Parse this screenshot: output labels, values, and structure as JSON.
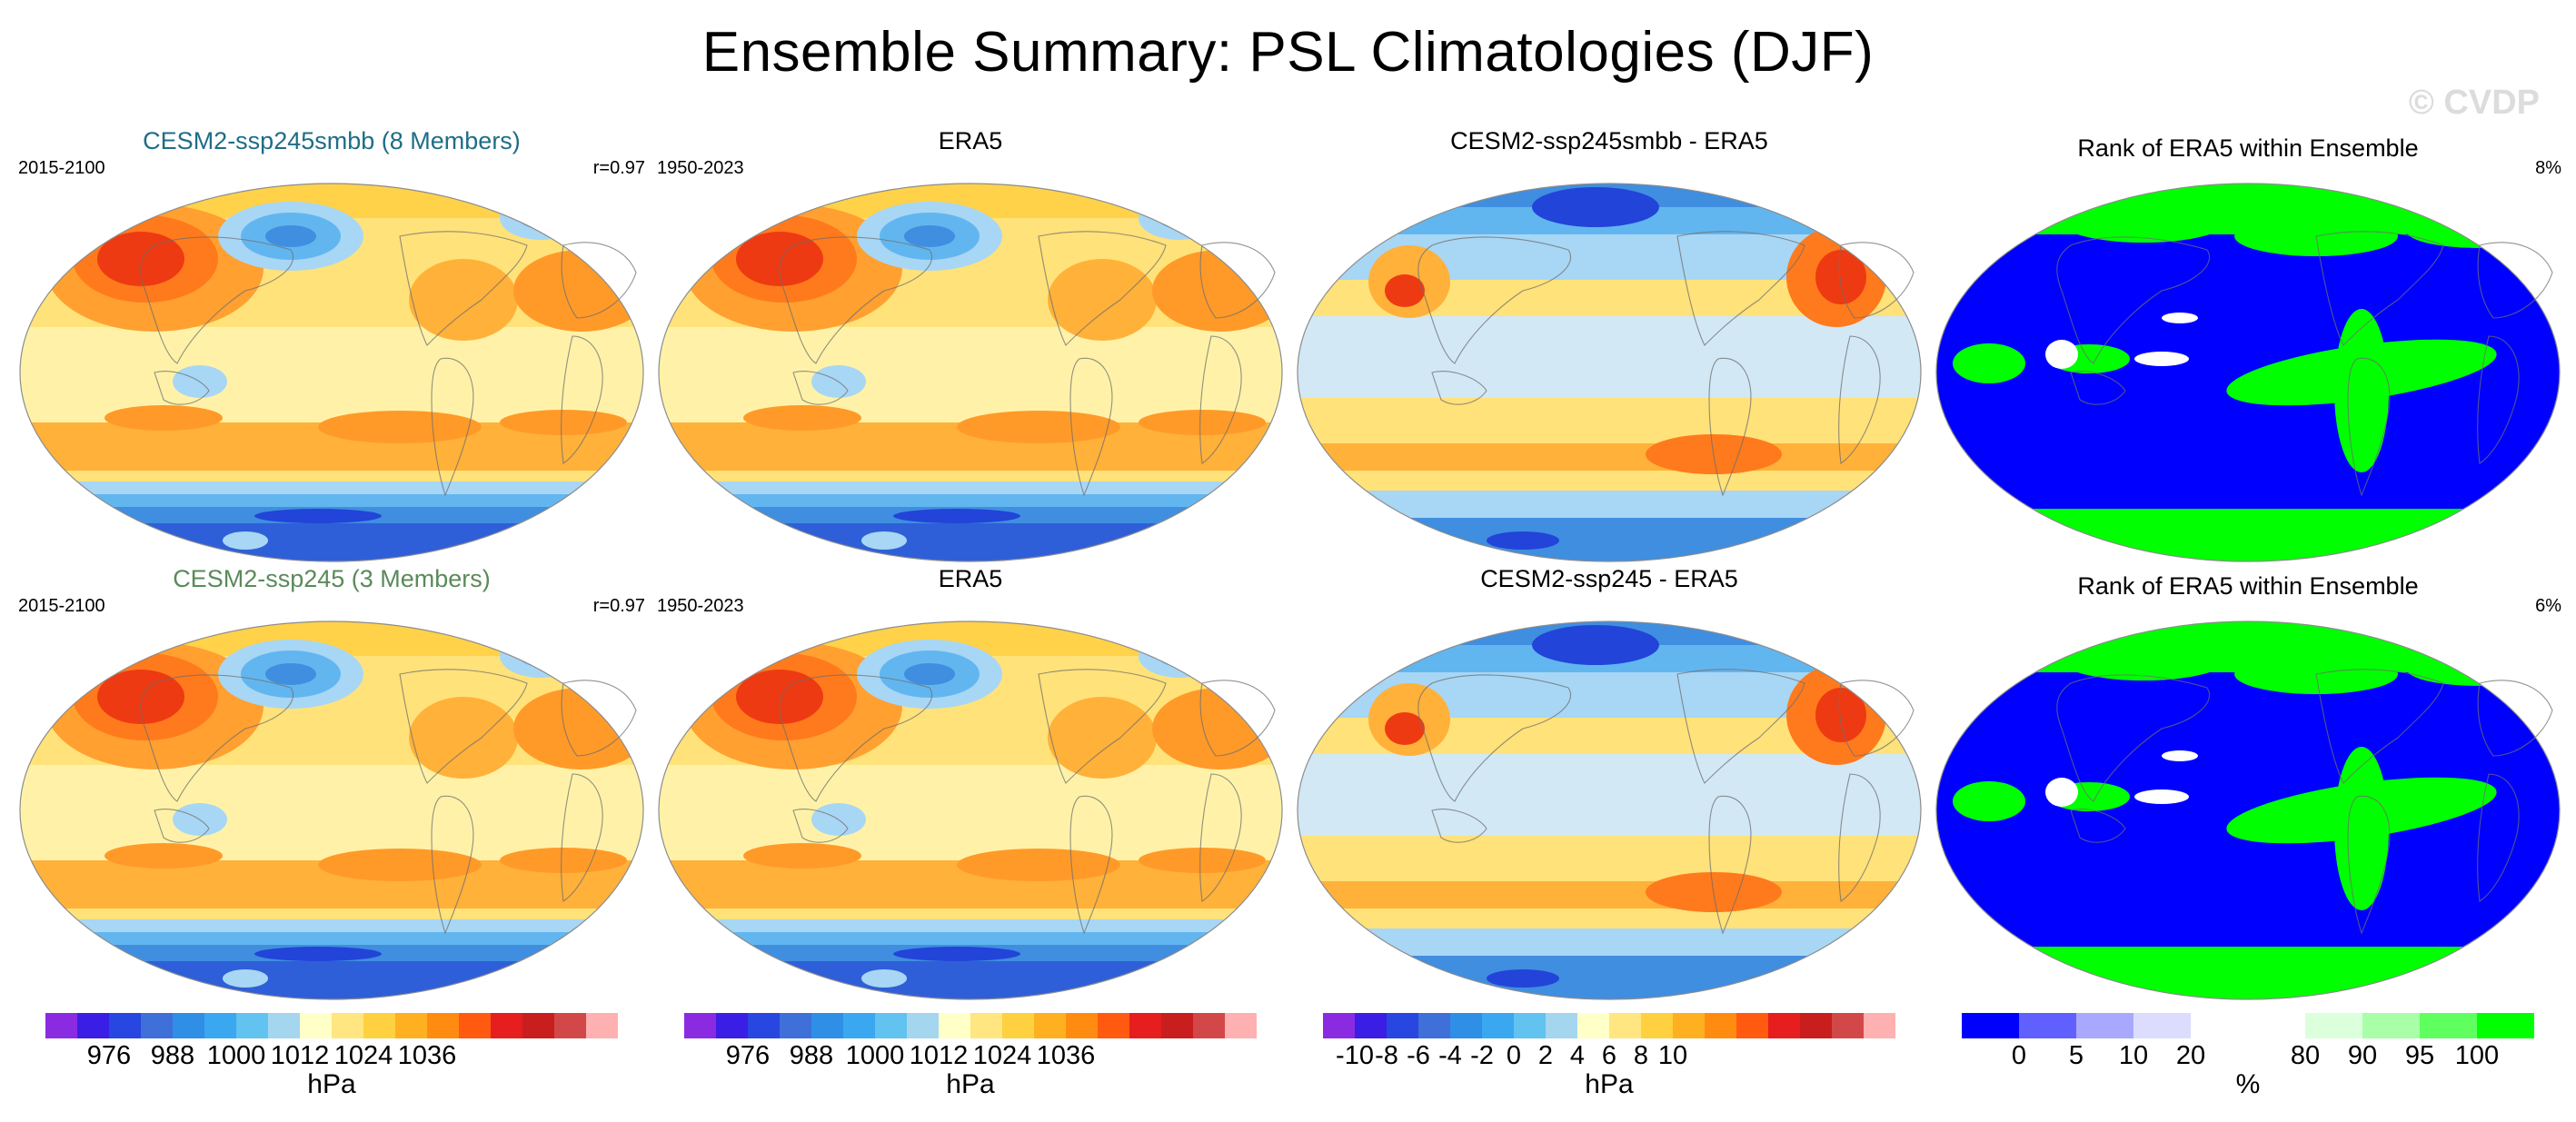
{
  "title": "Ensemble Summary: PSL Climatologies (DJF)",
  "watermark": "© CVDP",
  "colors": {
    "title_ens1": "#1f6d86",
    "title_ens2": "#5a8a5a"
  },
  "chart_data": [
    {
      "type": "heatmap",
      "row": 1,
      "col": 1,
      "title": "CESM2-ssp245smbb (8 Members)",
      "left_label": "2015-2100",
      "right_label": "r=0.97",
      "field": "psl",
      "units": "hPa"
    },
    {
      "type": "heatmap",
      "row": 1,
      "col": 2,
      "title": "ERA5",
      "left_label": "1950-2023",
      "right_label": "",
      "field": "psl",
      "units": "hPa"
    },
    {
      "type": "heatmap",
      "row": 1,
      "col": 3,
      "title": "CESM2-ssp245smbb - ERA5",
      "left_label": "",
      "right_label": "",
      "field": "diff",
      "units": "hPa"
    },
    {
      "type": "heatmap",
      "row": 1,
      "col": 4,
      "title": "Rank of ERA5 within Ensemble",
      "left_label": "",
      "right_label": "8%",
      "field": "rank",
      "units": "%"
    },
    {
      "type": "heatmap",
      "row": 2,
      "col": 1,
      "title": "CESM2-ssp245 (3 Members)",
      "left_label": "2015-2100",
      "right_label": "r=0.97",
      "field": "psl",
      "units": "hPa"
    },
    {
      "type": "heatmap",
      "row": 2,
      "col": 2,
      "title": "ERA5",
      "left_label": "1950-2023",
      "right_label": "",
      "field": "psl",
      "units": "hPa"
    },
    {
      "type": "heatmap",
      "row": 2,
      "col": 3,
      "title": "CESM2-ssp245 - ERA5",
      "left_label": "",
      "right_label": "",
      "field": "diff",
      "units": "hPa"
    },
    {
      "type": "heatmap",
      "row": 2,
      "col": 4,
      "title": "Rank of ERA5 within Ensemble",
      "left_label": "",
      "right_label": "6%",
      "field": "rank",
      "units": "%"
    }
  ],
  "colorbars": [
    {
      "label": "hPa",
      "ticks": [
        "976",
        "988",
        "1000",
        "1012",
        "1024",
        "1036"
      ],
      "tick_index": [
        2,
        4,
        6,
        8,
        10,
        12
      ],
      "colors": [
        "#8a2be2",
        "#3a1ee6",
        "#2846e0",
        "#3f6fd8",
        "#2f8ee6",
        "#3aa8f0",
        "#62c2f0",
        "#a4d6f0",
        "#ffffc8",
        "#ffe680",
        "#ffd040",
        "#ffb020",
        "#ff8c10",
        "#ff5a10",
        "#e61e1e",
        "#c81e1e",
        "#d24848",
        "#ffb0b0"
      ]
    },
    {
      "label": "hPa",
      "ticks": [
        "976",
        "988",
        "1000",
        "1012",
        "1024",
        "1036"
      ],
      "tick_index": [
        2,
        4,
        6,
        8,
        10,
        12
      ],
      "colors": [
        "#8a2be2",
        "#3a1ee6",
        "#2846e0",
        "#3f6fd8",
        "#2f8ee6",
        "#3aa8f0",
        "#62c2f0",
        "#a4d6f0",
        "#ffffc8",
        "#ffe680",
        "#ffd040",
        "#ffb020",
        "#ff8c10",
        "#ff5a10",
        "#e61e1e",
        "#c81e1e",
        "#d24848",
        "#ffb0b0"
      ]
    },
    {
      "label": "hPa",
      "ticks": [
        "-10",
        "-8",
        "-6",
        "-4",
        "-2",
        "0",
        "2",
        "4",
        "6",
        "8",
        "10"
      ],
      "tick_index": [
        1,
        2,
        3,
        4,
        5,
        6,
        7,
        8,
        9,
        10,
        11
      ],
      "colors": [
        "#8a2be2",
        "#3a1ee6",
        "#2846e0",
        "#3f6fd8",
        "#2f8ee6",
        "#3aa8f0",
        "#62c2f0",
        "#a4d6f0",
        "#ffffc8",
        "#ffe680",
        "#ffd040",
        "#ffb020",
        "#ff8c10",
        "#ff5a10",
        "#e61e1e",
        "#c81e1e",
        "#d24848",
        "#ffb0b0"
      ]
    },
    {
      "label": "%",
      "ticks": [
        "0",
        "5",
        "10",
        "20",
        "80",
        "90",
        "95",
        "100"
      ],
      "tick_index": [
        1,
        2,
        3,
        4,
        6,
        7,
        8,
        9
      ],
      "colors": [
        "#0000ff",
        "#6060ff",
        "#a8a8ff",
        "#dcdcff",
        "#ffffff",
        "#ffffff",
        "#dcffdc",
        "#a8ffa8",
        "#60ff60",
        "#00ff00"
      ]
    }
  ]
}
